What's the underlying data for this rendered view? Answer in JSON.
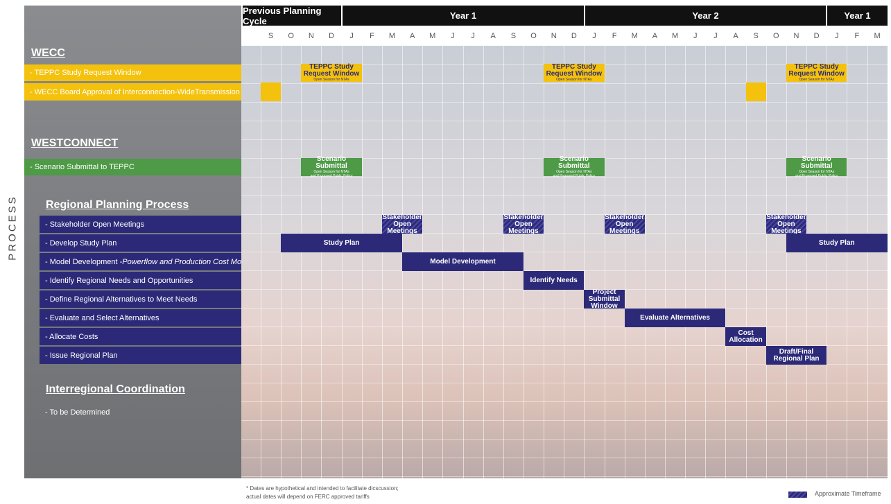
{
  "side_label": "PROCESS",
  "timeline": {
    "periods": [
      "Previous Planning Cycle",
      "Year 1",
      "Year 2",
      "Year 1"
    ],
    "months": [
      "S",
      "O",
      "N",
      "D",
      "J",
      "F",
      "M",
      "A",
      "M",
      "J",
      "J",
      "A",
      "S",
      "O",
      "N",
      "D",
      "J",
      "F",
      "M",
      "A",
      "M",
      "J",
      "J",
      "A",
      "S",
      "O",
      "N",
      "D",
      "J",
      "F",
      "M"
    ]
  },
  "sections": [
    {
      "title": "WECC",
      "rows": [
        {
          "label": "- TEPPC Study Request Window",
          "bars": [
            {
              "lines": [
                "TEPPC Study",
                "Request Window"
              ],
              "note": [
                "Open Season for NTAs"
              ]
            },
            {
              "lines": [
                "TEPPC Study",
                "Request Window"
              ],
              "note": [
                "Open Season for NTAs"
              ]
            },
            {
              "lines": [
                "TEPPC Study",
                "Request Window"
              ],
              "note": [
                "Open Season for NTAs"
              ]
            }
          ]
        },
        {
          "label": "- WECC Board Approval of Interconnection-WideTransmission Plan"
        }
      ]
    },
    {
      "title": "WESTCONNECT",
      "rows": [
        {
          "label": "- Scenario Submittal to TEPPC",
          "bars": [
            {
              "lines": [
                "Scenario Submittal"
              ],
              "note": [
                "Open Season for NTAs",
                "and Proposed Public Policy"
              ]
            },
            {
              "lines": [
                "Scenario Submittal"
              ],
              "note": [
                "Open Season for NTAs",
                "and Proposed Public Policy"
              ]
            },
            {
              "lines": [
                "Scenario Submittal"
              ],
              "note": [
                "Open Season for NTAs",
                "and Proposed Public Policy"
              ]
            }
          ]
        }
      ]
    },
    {
      "title": "Regional Planning Process",
      "rows": [
        {
          "label": "- Stakeholder Open Meetings",
          "bars": [
            {
              "lines": [
                "Stakeholder",
                "Open Meetings"
              ]
            },
            {
              "lines": [
                "Stakeholder",
                "Open Meetings"
              ]
            },
            {
              "lines": [
                "Stakeholder",
                "Open Meetings"
              ]
            },
            {
              "lines": [
                "Stakeholder",
                "Open Meetings"
              ]
            }
          ]
        },
        {
          "label": "- Develop Study Plan",
          "bars": [
            {
              "lines": [
                "Study Plan"
              ]
            },
            {
              "lines": [
                "Study Plan"
              ]
            }
          ]
        },
        {
          "label": "- Model Development - ",
          "label_italic": "Powerflow and Production Cost Model",
          "bars": [
            {
              "lines": [
                "Model Development"
              ]
            }
          ]
        },
        {
          "label": "- Identify Regional Needs and Opportunities",
          "bars": [
            {
              "lines": [
                "Identify Needs"
              ]
            }
          ]
        },
        {
          "label": "- Define Regional Alternatives to Meet Needs",
          "bars": [
            {
              "lines": [
                "Project",
                "Submittal Window"
              ]
            }
          ]
        },
        {
          "label": "- Evaluate and Select Alternatives",
          "bars": [
            {
              "lines": [
                "Evaluate Alternatives"
              ]
            }
          ]
        },
        {
          "label": "- Allocate Costs",
          "bars": [
            {
              "lines": [
                "Cost Allocation"
              ]
            }
          ]
        },
        {
          "label": "- Issue Regional Plan",
          "bars": [
            {
              "lines": [
                "Draft/Final",
                "Regional Plan"
              ]
            }
          ]
        }
      ]
    },
    {
      "title": "Interregional Coordination",
      "rows": [
        {
          "label": "- To be Determined"
        }
      ]
    }
  ],
  "footnote": [
    "* Dates are hypothetical and intended to facilitate dicscussion;",
    "actual dates will depend on FERC approved tariffs"
  ],
  "legend": "Approximate Timeframe"
}
